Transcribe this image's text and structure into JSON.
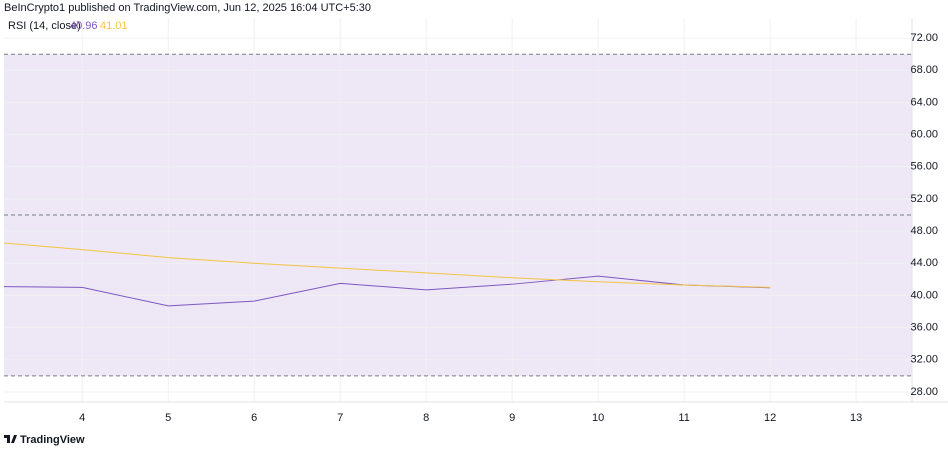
{
  "header": "BeInCrypto1 published on TradingView.com, Jun 12, 2025 16:04 UTC+5:30",
  "footer": "TradingView",
  "chart_data": {
    "type": "line",
    "x": [
      3,
      4,
      5,
      6,
      7,
      8,
      9,
      10,
      11,
      12
    ],
    "series": [
      {
        "name": "RSI (14, close)",
        "color": "#7e57c2",
        "values": [
          41.1,
          41.0,
          38.7,
          39.3,
          41.5,
          40.7,
          41.4,
          42.4,
          41.3,
          40.96
        ]
      },
      {
        "color": "#f5c542",
        "values": [
          46.6,
          45.7,
          44.7,
          44.0,
          43.4,
          42.8,
          42.2,
          41.7,
          41.3,
          41.01
        ]
      }
    ],
    "xlim": [
      3.09,
      13.65
    ],
    "xticks": [
      4,
      5,
      6,
      7,
      8,
      9,
      10,
      11,
      12,
      13
    ],
    "ylim": [
      26.75,
      74.5
    ],
    "yticks": [
      {
        "value": 28,
        "label": "28.00"
      },
      {
        "value": 32,
        "label": "32.00"
      },
      {
        "value": 36,
        "label": "36.00"
      },
      {
        "value": 40,
        "label": "40.00"
      },
      {
        "value": 44,
        "label": "44.00"
      },
      {
        "value": 48,
        "label": "48.00"
      },
      {
        "value": 52,
        "label": "52.00"
      },
      {
        "value": 56,
        "label": "56.00"
      },
      {
        "value": 60,
        "label": "60.00"
      },
      {
        "value": 64,
        "label": "64.00"
      },
      {
        "value": 68,
        "label": "68.00"
      },
      {
        "value": 72,
        "label": "72.00"
      }
    ],
    "bands": [
      30,
      50,
      70
    ],
    "band_fill": "#ede7f6",
    "grid": true
  }
}
